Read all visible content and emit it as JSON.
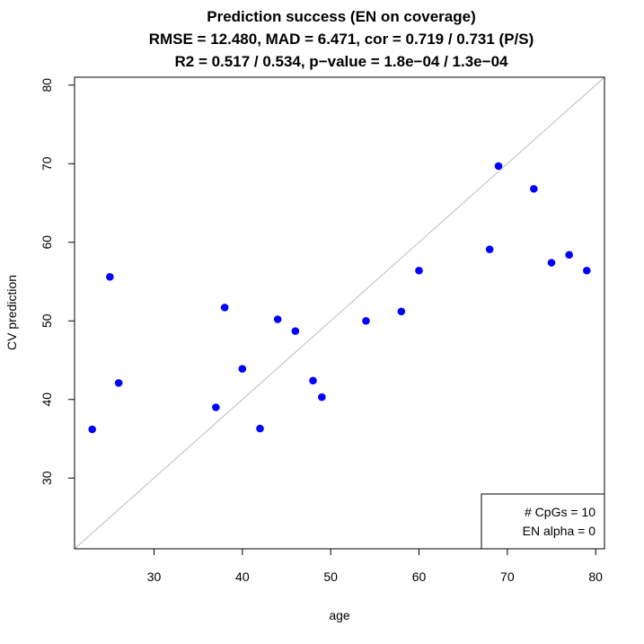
{
  "chart_data": {
    "type": "scatter",
    "title": "Prediction success (EN on coverage)",
    "subtitle_lines": [
      "RMSE = 12.480, MAD = 6.471, cor = 0.719 / 0.731 (P/S)",
      "R2 = 0.517 / 0.534, p−value = 1.8e−04 / 1.3e−04"
    ],
    "xlabel": "age",
    "ylabel": "CV prediction",
    "xlim": [
      21,
      81
    ],
    "ylim": [
      21,
      81
    ],
    "x_ticks": [
      30,
      40,
      50,
      60,
      70,
      80
    ],
    "y_ticks": [
      30,
      40,
      50,
      60,
      70,
      80
    ],
    "grid": false,
    "reference_line": "identity",
    "point_color": "#0000ff",
    "line_color": "#bebebe",
    "points": [
      {
        "x": 23,
        "y": 36.2
      },
      {
        "x": 25,
        "y": 55.6
      },
      {
        "x": 26,
        "y": 42.1
      },
      {
        "x": 37,
        "y": 39.0
      },
      {
        "x": 38,
        "y": 51.7
      },
      {
        "x": 40,
        "y": 43.9
      },
      {
        "x": 42,
        "y": 36.3
      },
      {
        "x": 44,
        "y": 50.2
      },
      {
        "x": 46,
        "y": 48.7
      },
      {
        "x": 48,
        "y": 42.4
      },
      {
        "x": 49,
        "y": 40.3
      },
      {
        "x": 54,
        "y": 50.0
      },
      {
        "x": 58,
        "y": 51.2
      },
      {
        "x": 60,
        "y": 56.4
      },
      {
        "x": 68,
        "y": 59.1
      },
      {
        "x": 69,
        "y": 69.7
      },
      {
        "x": 73,
        "y": 66.8
      },
      {
        "x": 75,
        "y": 57.4
      },
      {
        "x": 77,
        "y": 58.4
      },
      {
        "x": 79,
        "y": 56.4
      }
    ],
    "legend": {
      "position": "bottom-right",
      "lines": [
        "# CpGs = 10",
        "EN alpha = 0"
      ]
    }
  }
}
